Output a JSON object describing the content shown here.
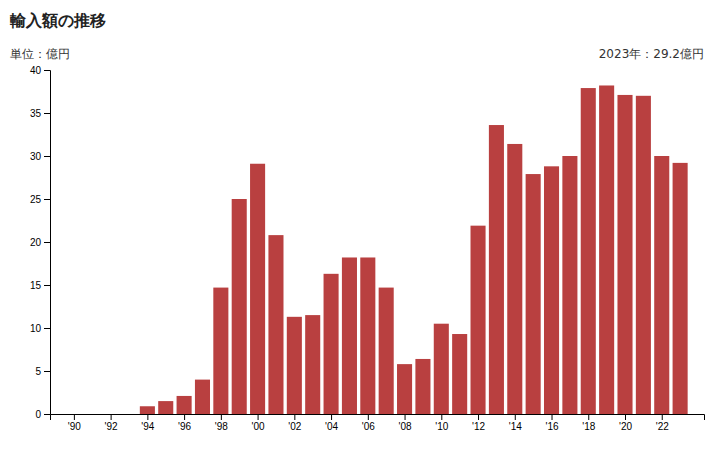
{
  "chart_data": {
    "type": "bar",
    "title": "輸入額の推移",
    "ylabel": "単位：億円",
    "annotations": [
      "2023年：29.2億円"
    ],
    "x": [
      1990,
      1991,
      1992,
      1993,
      1994,
      1995,
      1996,
      1997,
      1998,
      1999,
      2000,
      2001,
      2002,
      2003,
      2004,
      2005,
      2006,
      2007,
      2008,
      2009,
      2010,
      2011,
      2012,
      2013,
      2014,
      2015,
      2016,
      2017,
      2018,
      2019,
      2020,
      2021,
      2022,
      2023
    ],
    "values": [
      0,
      0,
      0,
      0,
      0.9,
      1.5,
      2.1,
      4.0,
      14.7,
      25.0,
      29.1,
      20.8,
      11.3,
      11.5,
      16.3,
      18.2,
      18.2,
      14.7,
      5.8,
      6.4,
      10.5,
      9.3,
      21.9,
      33.6,
      31.4,
      27.9,
      28.8,
      30.0,
      37.9,
      38.2,
      37.1,
      37.0,
      30.0,
      29.2
    ],
    "color": "#b94040",
    "xlim": [
      1988.7,
      2024.3
    ],
    "xticks": [
      {
        "value": 1990,
        "label": "'90"
      },
      {
        "value": 1992,
        "label": "'92"
      },
      {
        "value": 1994,
        "label": "'94"
      },
      {
        "value": 1996,
        "label": "'96"
      },
      {
        "value": 1998,
        "label": "'98"
      },
      {
        "value": 2000,
        "label": "'00"
      },
      {
        "value": 2002,
        "label": "'02"
      },
      {
        "value": 2004,
        "label": "'04"
      },
      {
        "value": 2006,
        "label": "'06"
      },
      {
        "value": 2008,
        "label": "'08"
      },
      {
        "value": 2010,
        "label": "'10"
      },
      {
        "value": 2012,
        "label": "'12"
      },
      {
        "value": 2014,
        "label": "'14"
      },
      {
        "value": 2016,
        "label": "'16"
      },
      {
        "value": 2018,
        "label": "'18"
      },
      {
        "value": 2020,
        "label": "'20"
      },
      {
        "value": 2022,
        "label": "'22"
      }
    ],
    "ylim": [
      0,
      40
    ],
    "yticks": [
      0,
      5,
      10,
      15,
      20,
      25,
      30,
      35,
      40
    ],
    "grid": false
  }
}
